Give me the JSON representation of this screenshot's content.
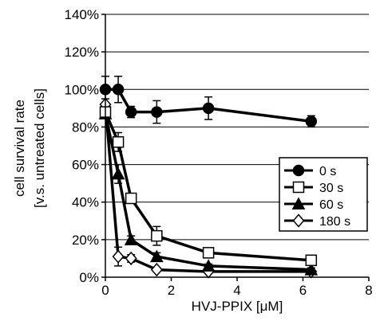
{
  "chart_data": {
    "type": "line",
    "xlabel": "HVJ-PPIX [μM]",
    "ylabel_line1": "cell survival rate",
    "ylabel_line2": "[v.s. untreated cells]",
    "xlim": [
      0,
      8
    ],
    "ylim": [
      0,
      140
    ],
    "x_ticks": [
      0,
      2,
      4,
      6,
      8
    ],
    "y_ticks": [
      0,
      20,
      40,
      60,
      80,
      100,
      120,
      140
    ],
    "y_tick_labels": [
      "0%",
      "20%",
      "40%",
      "60%",
      "80%",
      "100%",
      "120%",
      "140%"
    ],
    "grid": "horizontal",
    "legend_position": "right",
    "x": [
      0,
      0.39,
      0.78,
      1.56,
      3.13,
      6.25
    ],
    "series": [
      {
        "name": "0 s",
        "marker": "filled-circle",
        "values": [
          100,
          100,
          88,
          88,
          90,
          83
        ],
        "errors": [
          7,
          7,
          3,
          6,
          6,
          3
        ]
      },
      {
        "name": "30 s",
        "marker": "open-square",
        "values": [
          88,
          72,
          42,
          22,
          13,
          9
        ],
        "errors": [
          3,
          5,
          2,
          5,
          2,
          1
        ]
      },
      {
        "name": "60 s",
        "marker": "filled-triangle",
        "values": [
          87,
          55,
          20,
          11,
          6,
          4
        ],
        "errors": [
          2,
          5,
          2,
          2,
          1,
          1
        ]
      },
      {
        "name": "180 s",
        "marker": "open-diamond",
        "values": [
          92,
          11,
          10,
          4,
          3,
          3
        ],
        "errors": [
          3,
          5,
          2,
          1,
          1,
          1
        ]
      }
    ]
  }
}
